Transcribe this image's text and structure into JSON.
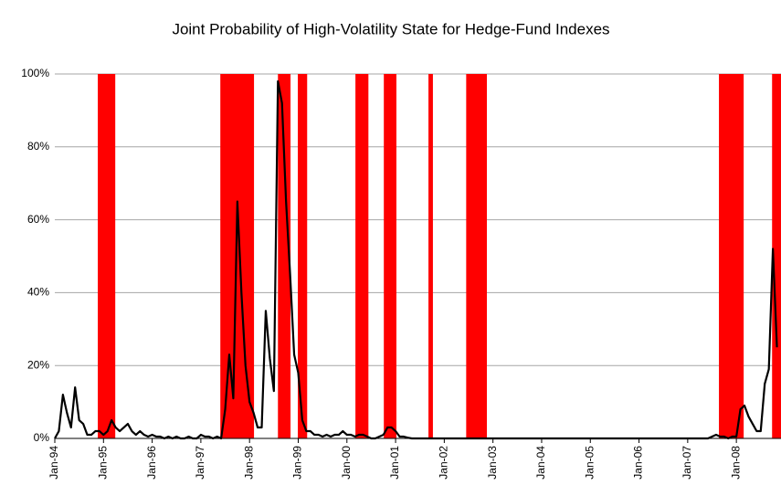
{
  "chart_data": {
    "type": "line",
    "title": "Joint Probability of High-Volatility State for Hedge-Fund Indexes",
    "xlim": [
      0,
      179
    ],
    "xticks": [
      {
        "value": 0,
        "label": "Jan-94"
      },
      {
        "value": 12,
        "label": "Jan-95"
      },
      {
        "value": 24,
        "label": "Jan-96"
      },
      {
        "value": 36,
        "label": "Jan-97"
      },
      {
        "value": 48,
        "label": "Jan-98"
      },
      {
        "value": 60,
        "label": "Jan-99"
      },
      {
        "value": 72,
        "label": "Jan-00"
      },
      {
        "value": 84,
        "label": "Jan-01"
      },
      {
        "value": 96,
        "label": "Jan-02"
      },
      {
        "value": 108,
        "label": "Jan-03"
      },
      {
        "value": 120,
        "label": "Jan-04"
      },
      {
        "value": 132,
        "label": "Jan-05"
      },
      {
        "value": 144,
        "label": "Jan-06"
      },
      {
        "value": 156,
        "label": "Jan-07"
      },
      {
        "value": 168,
        "label": "Jan-08"
      }
    ],
    "ylim": [
      0,
      100
    ],
    "yticks": [
      {
        "value": 0,
        "label": "0%"
      },
      {
        "value": 20,
        "label": "20%"
      },
      {
        "value": 40,
        "label": "40%"
      },
      {
        "value": 60,
        "label": "60%"
      },
      {
        "value": 80,
        "label": "80%"
      },
      {
        "value": 100,
        "label": "100%"
      }
    ],
    "grid": true,
    "band_color": "#ff0000",
    "bands": [
      [
        10.6,
        14.9
      ],
      [
        40.8,
        49.1
      ],
      [
        55,
        58.1
      ],
      [
        59.9,
        62.2
      ],
      [
        74.1,
        77.3
      ],
      [
        81.1,
        84.2
      ],
      [
        92.1,
        93.2
      ],
      [
        101.4,
        106.5
      ],
      [
        163.7,
        169.8
      ],
      [
        176.8,
        179
      ]
    ],
    "color": "#000000",
    "x": [
      0,
      1,
      2,
      3,
      4,
      5,
      6,
      7,
      8,
      9,
      10,
      11,
      12,
      13,
      14,
      15,
      16,
      17,
      18,
      19,
      20,
      21,
      22,
      23,
      24,
      25,
      26,
      27,
      28,
      29,
      30,
      31,
      32,
      33,
      34,
      35,
      36,
      37,
      38,
      39,
      40,
      41,
      42,
      43,
      44,
      45,
      46,
      47,
      48,
      49,
      50,
      51,
      52,
      53,
      54,
      55,
      56,
      57,
      58,
      59,
      60,
      61,
      62,
      63,
      64,
      65,
      66,
      67,
      68,
      69,
      70,
      71,
      72,
      73,
      74,
      75,
      76,
      77,
      78,
      79,
      80,
      81,
      82,
      83,
      84,
      85,
      86,
      87,
      88,
      89,
      90,
      91,
      92,
      93,
      94,
      95,
      96,
      97,
      98,
      99,
      100,
      101,
      102,
      103,
      104,
      105,
      106,
      107,
      108,
      109,
      110,
      111,
      112,
      113,
      114,
      115,
      116,
      117,
      118,
      119,
      120,
      121,
      122,
      123,
      124,
      125,
      126,
      127,
      128,
      129,
      130,
      131,
      132,
      133,
      134,
      135,
      136,
      137,
      138,
      139,
      140,
      141,
      142,
      143,
      144,
      145,
      146,
      147,
      148,
      149,
      150,
      151,
      152,
      153,
      154,
      155,
      156,
      157,
      158,
      159,
      160,
      161,
      162,
      163,
      164,
      165,
      166,
      167,
      168,
      169,
      170,
      171,
      172,
      173,
      174,
      175,
      176,
      177,
      178
    ],
    "values": [
      0,
      2,
      12,
      7,
      3,
      14,
      5,
      4,
      1,
      1,
      2,
      2,
      1,
      2,
      5,
      3,
      2,
      3,
      4,
      2,
      1,
      2,
      1,
      0.5,
      1,
      0.5,
      0.5,
      0,
      0.5,
      0,
      0.5,
      0,
      0,
      0.5,
      0,
      0,
      1,
      0.5,
      0.5,
      0,
      0.5,
      0,
      8,
      23,
      11,
      65,
      40,
      20,
      10,
      7,
      3,
      3,
      35,
      22,
      13,
      98,
      92,
      65,
      45,
      23,
      18,
      5,
      2,
      2,
      1,
      1,
      0.5,
      1,
      0.5,
      1,
      1,
      2,
      1,
      1,
      0.5,
      1,
      1,
      0.5,
      0,
      0,
      0.5,
      1,
      3,
      3,
      2,
      0.5,
      0.5,
      0.2,
      0,
      0,
      0,
      0,
      0,
      0,
      0,
      0,
      0,
      0,
      0,
      0,
      0,
      0,
      0,
      0,
      0,
      0,
      0,
      0,
      0,
      0,
      0,
      0,
      0,
      0,
      0,
      0,
      0,
      0,
      0,
      0,
      0,
      0,
      0,
      0,
      0,
      0,
      0,
      0,
      0,
      0,
      0,
      0,
      0,
      0,
      0,
      0,
      0,
      0,
      0,
      0,
      0,
      0,
      0,
      0,
      0,
      0,
      0,
      0,
      0,
      0,
      0,
      0,
      0,
      0,
      0,
      0,
      0,
      0,
      0,
      0,
      0,
      0,
      0.5,
      1,
      0.5,
      0.5,
      0,
      0.5,
      0.5,
      8,
      9,
      6,
      4,
      2,
      2,
      15,
      19,
      52,
      25
    ]
  }
}
